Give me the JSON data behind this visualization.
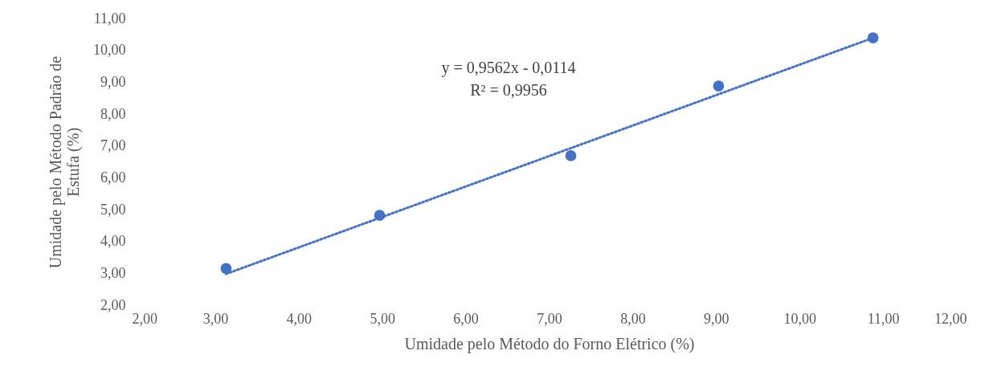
{
  "chart_data": {
    "type": "scatter",
    "xlabel": "Umidade pelo Método do Forno Elétrico (%)",
    "ylabel": "Umidade pelo Método Padrão de Estufa (%)",
    "x": [
      3.13,
      4.97,
      7.26,
      9.03,
      10.88
    ],
    "series": [
      {
        "type": "scatter",
        "color": "#4472c4",
        "marker": "circle",
        "values": [
          3.15,
          4.82,
          6.69,
          8.88,
          10.39
        ]
      },
      {
        "type": "line",
        "color": "#4472c4",
        "line_style": "dotted",
        "x": [
          3.13,
          10.88
        ],
        "values": [
          2.98,
          10.39
        ]
      }
    ],
    "annotations": [
      "y = 0,9562x - 0,0114",
      "R² = 0,9956"
    ],
    "xlim": [
      2,
      12
    ],
    "xticks": [
      {
        "value": 2,
        "label": "2,00"
      },
      {
        "value": 3,
        "label": "3,00"
      },
      {
        "value": 4,
        "label": "4,00"
      },
      {
        "value": 5,
        "label": "5,00"
      },
      {
        "value": 6,
        "label": "6,00"
      },
      {
        "value": 7,
        "label": "7,00"
      },
      {
        "value": 8,
        "label": "8,00"
      },
      {
        "value": 9,
        "label": "9,00"
      },
      {
        "value": 10,
        "label": "10,00"
      },
      {
        "value": 11,
        "label": "11,00"
      },
      {
        "value": 12,
        "label": "12,00"
      }
    ],
    "ylim": [
      2,
      11
    ],
    "yticks": [
      {
        "value": 2,
        "label": "2,00"
      },
      {
        "value": 3,
        "label": "3,00"
      },
      {
        "value": 4,
        "label": "4,00"
      },
      {
        "value": 5,
        "label": "5,00"
      },
      {
        "value": 6,
        "label": "6,00"
      },
      {
        "value": 7,
        "label": "7,00"
      },
      {
        "value": 8,
        "label": "8,00"
      },
      {
        "value": 9,
        "label": "9,00"
      },
      {
        "value": 10,
        "label": "10,00"
      },
      {
        "value": 11,
        "label": "11,00"
      }
    ],
    "grid": false
  }
}
